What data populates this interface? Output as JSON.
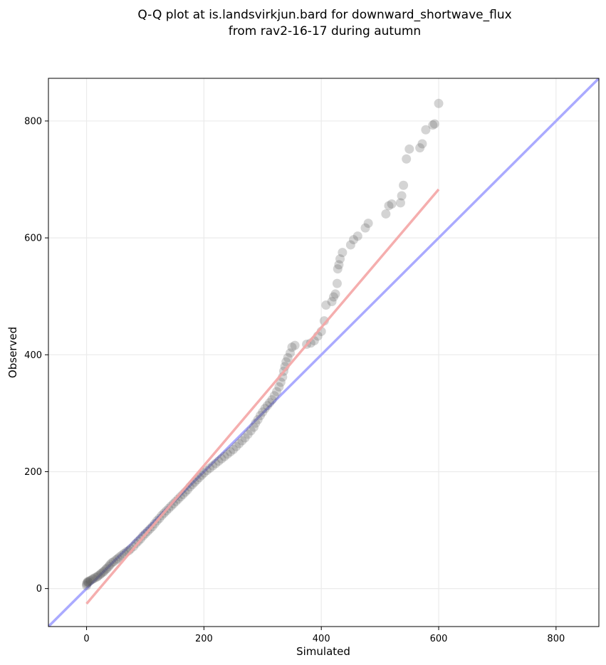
{
  "chart_data": {
    "type": "scatter",
    "title_line1": "Q-Q plot at is.landsvirkjun.bard for downward_shortwave_flux",
    "title_line2": "from rav2-16-17 during autumn",
    "xlabel": "Simulated",
    "ylabel": "Observed",
    "xlim": [
      -65,
      873
    ],
    "ylim": [
      -65,
      873
    ],
    "xticks": [
      0,
      200,
      400,
      600,
      800
    ],
    "yticks": [
      0,
      200,
      400,
      600,
      800
    ],
    "grid": true,
    "identity_line_color": "#aaaaff",
    "fit_line_color": "#f4a5a5",
    "point_color": "#555555",
    "fit_line": {
      "x": [
        0,
        600
      ],
      "y": [
        -26,
        683
      ]
    },
    "points": [
      [
        0,
        5
      ],
      [
        0,
        8
      ],
      [
        1,
        10
      ],
      [
        2,
        12
      ],
      [
        3,
        11
      ],
      [
        5,
        13
      ],
      [
        7,
        14
      ],
      [
        10,
        16
      ],
      [
        12,
        17
      ],
      [
        15,
        19
      ],
      [
        18,
        20
      ],
      [
        20,
        22
      ],
      [
        23,
        24
      ],
      [
        25,
        26
      ],
      [
        28,
        28
      ],
      [
        30,
        30
      ],
      [
        33,
        33
      ],
      [
        35,
        35
      ],
      [
        38,
        38
      ],
      [
        40,
        41
      ],
      [
        43,
        44
      ],
      [
        46,
        46
      ],
      [
        50,
        49
      ],
      [
        53,
        51
      ],
      [
        56,
        54
      ],
      [
        60,
        57
      ],
      [
        64,
        60
      ],
      [
        68,
        63
      ],
      [
        72,
        65
      ],
      [
        75,
        68
      ],
      [
        80,
        72
      ],
      [
        84,
        77
      ],
      [
        88,
        81
      ],
      [
        92,
        85
      ],
      [
        96,
        90
      ],
      [
        100,
        94
      ],
      [
        104,
        98
      ],
      [
        108,
        102
      ],
      [
        112,
        106
      ],
      [
        116,
        111
      ],
      [
        120,
        116
      ],
      [
        124,
        120
      ],
      [
        128,
        125
      ],
      [
        132,
        129
      ],
      [
        136,
        133
      ],
      [
        140,
        137
      ],
      [
        144,
        141
      ],
      [
        148,
        145
      ],
      [
        152,
        149
      ],
      [
        156,
        153
      ],
      [
        160,
        157
      ],
      [
        164,
        161
      ],
      [
        168,
        165
      ],
      [
        172,
        169
      ],
      [
        176,
        174
      ],
      [
        180,
        178
      ],
      [
        184,
        182
      ],
      [
        188,
        186
      ],
      [
        192,
        190
      ],
      [
        196,
        194
      ],
      [
        200,
        198
      ],
      [
        205,
        202
      ],
      [
        210,
        206
      ],
      [
        215,
        210
      ],
      [
        220,
        214
      ],
      [
        225,
        218
      ],
      [
        230,
        222
      ],
      [
        235,
        226
      ],
      [
        240,
        230
      ],
      [
        245,
        234
      ],
      [
        250,
        238
      ],
      [
        255,
        243
      ],
      [
        260,
        248
      ],
      [
        265,
        253
      ],
      [
        270,
        258
      ],
      [
        275,
        264
      ],
      [
        280,
        270
      ],
      [
        285,
        276
      ],
      [
        288,
        283
      ],
      [
        292,
        289
      ],
      [
        296,
        296
      ],
      [
        300,
        302
      ],
      [
        304,
        308
      ],
      [
        308,
        313
      ],
      [
        312,
        318
      ],
      [
        316,
        323
      ],
      [
        320,
        330
      ],
      [
        324,
        337
      ],
      [
        328,
        345
      ],
      [
        331,
        353
      ],
      [
        334,
        362
      ],
      [
        336,
        372
      ],
      [
        338,
        380
      ],
      [
        340,
        388
      ],
      [
        343,
        395
      ],
      [
        347,
        403
      ],
      [
        350,
        413
      ],
      [
        355,
        416
      ],
      [
        375,
        418
      ],
      [
        382,
        420
      ],
      [
        388,
        424
      ],
      [
        394,
        432
      ],
      [
        400,
        440
      ],
      [
        405,
        458
      ],
      [
        408,
        485
      ],
      [
        418,
        491
      ],
      [
        421,
        499
      ],
      [
        424,
        504
      ],
      [
        427,
        522
      ],
      [
        428,
        547
      ],
      [
        430,
        554
      ],
      [
        432,
        564
      ],
      [
        436,
        575
      ],
      [
        450,
        588
      ],
      [
        455,
        597
      ],
      [
        462,
        603
      ],
      [
        475,
        617
      ],
      [
        480,
        625
      ],
      [
        510,
        641
      ],
      [
        515,
        655
      ],
      [
        520,
        658
      ],
      [
        535,
        660
      ],
      [
        537,
        672
      ],
      [
        540,
        690
      ],
      [
        545,
        735
      ],
      [
        550,
        752
      ],
      [
        568,
        754
      ],
      [
        572,
        761
      ],
      [
        578,
        785
      ],
      [
        590,
        793
      ],
      [
        593,
        795
      ],
      [
        600,
        830
      ]
    ]
  }
}
